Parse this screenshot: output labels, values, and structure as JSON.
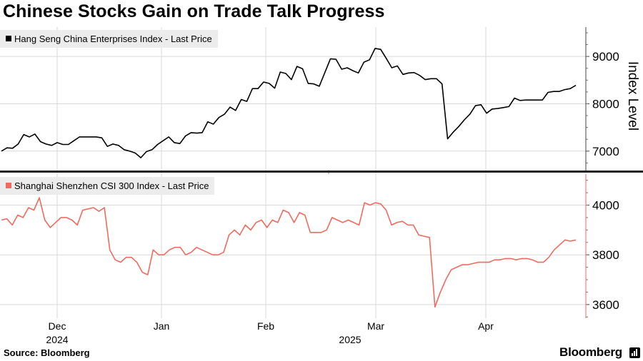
{
  "title": "Chinese Stocks Gain on Trade Talk Progress",
  "source": "Source: Bloomberg",
  "brand": "Bloomberg",
  "chart_data": [
    {
      "type": "line",
      "legend": "Hang Seng China Enterprises Index - Last Price",
      "color": "#000000",
      "ylabel": "Index Level",
      "ylim": [
        6590,
        9620
      ],
      "yticks": [
        7000,
        8000,
        9000
      ],
      "ytick_labels": [
        "7000",
        "8000",
        "9000"
      ],
      "values": [
        7000,
        7070,
        7060,
        7150,
        7350,
        7300,
        7360,
        7200,
        7150,
        7120,
        7180,
        7140,
        7140,
        7220,
        7300,
        7300,
        7300,
        7300,
        7280,
        7100,
        7150,
        7120,
        7030,
        7000,
        6960,
        6860,
        6990,
        7030,
        7140,
        7220,
        7300,
        7180,
        7160,
        7320,
        7390,
        7380,
        7390,
        7620,
        7570,
        7710,
        7780,
        7930,
        7860,
        8090,
        8050,
        8320,
        8320,
        8460,
        8430,
        8330,
        8670,
        8640,
        8510,
        8790,
        8740,
        8430,
        8420,
        8370,
        8660,
        8950,
        8940,
        8730,
        8760,
        8700,
        8650,
        8880,
        8930,
        9170,
        9150,
        8960,
        8760,
        8800,
        8620,
        8650,
        8660,
        8600,
        8510,
        8530,
        8530,
        8420,
        7260,
        7400,
        7520,
        7660,
        7780,
        7960,
        7980,
        7800,
        7890,
        7900,
        7920,
        7940,
        8120,
        8070,
        8080,
        8080,
        8080,
        8080,
        8240,
        8260,
        8260,
        8300,
        8320,
        8390
      ]
    },
    {
      "type": "line",
      "legend": "Shanghai Shenzhen CSI 300 Index - Last Price",
      "color": "#f06a60",
      "ylim": [
        3545,
        4125
      ],
      "yticks": [
        3600,
        3800,
        4000
      ],
      "ytick_labels": [
        "3600",
        "3800",
        "4000"
      ],
      "values": [
        3940,
        3945,
        3920,
        3960,
        3950,
        3990,
        3980,
        4030,
        3940,
        3910,
        3930,
        3950,
        3950,
        3940,
        3920,
        3980,
        3985,
        3990,
        3975,
        3990,
        3820,
        3780,
        3770,
        3790,
        3790,
        3770,
        3730,
        3720,
        3820,
        3800,
        3800,
        3820,
        3830,
        3830,
        3800,
        3810,
        3830,
        3820,
        3810,
        3800,
        3800,
        3810,
        3880,
        3900,
        3880,
        3920,
        3900,
        3930,
        3940,
        3910,
        3940,
        3930,
        3980,
        3970,
        3930,
        3970,
        3960,
        3890,
        3890,
        3890,
        3900,
        3950,
        3940,
        3930,
        3940,
        3930,
        3920,
        4010,
        4000,
        4010,
        4005,
        3980,
        3920,
        3930,
        3935,
        3920,
        3920,
        3880,
        3875,
        3870,
        3590,
        3650,
        3700,
        3740,
        3750,
        3760,
        3760,
        3765,
        3770,
        3770,
        3770,
        3780,
        3780,
        3785,
        3785,
        3780,
        3785,
        3785,
        3780,
        3770,
        3770,
        3790,
        3820,
        3840,
        3860,
        3855,
        3860
      ]
    }
  ],
  "x_axis": {
    "months": [
      "Dec",
      "Jan",
      "Feb",
      "Mar",
      "Apr"
    ],
    "years": [
      "2024",
      "2025"
    ]
  }
}
